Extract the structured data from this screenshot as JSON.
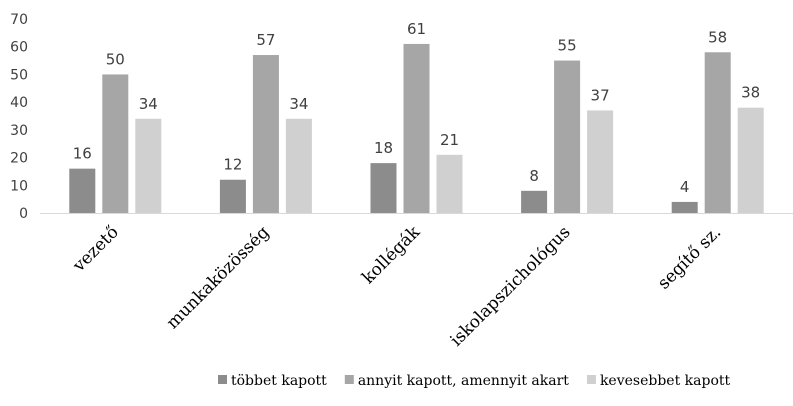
{
  "chart_data": {
    "type": "bar",
    "categories": [
      "vezető",
      "munkaközösség",
      "kollégák",
      "iskolapszichológus",
      "segítő sz."
    ],
    "series": [
      {
        "name": "többet kapott",
        "values": [
          16,
          12,
          18,
          8,
          4
        ],
        "color": "#8c8c8c"
      },
      {
        "name": "annyit kapott, amennyit akart",
        "values": [
          50,
          57,
          61,
          55,
          58
        ],
        "color": "#a6a6a6"
      },
      {
        "name": "kevesebbet kapott",
        "values": [
          34,
          34,
          21,
          37,
          38
        ],
        "color": "#d0d0d0"
      }
    ],
    "ylim": [
      0,
      70
    ],
    "yticks": [
      0,
      10,
      20,
      30,
      40,
      50,
      60,
      70
    ],
    "grid": false,
    "legend_position": "bottom",
    "data_labels": true,
    "axis_color": "#d9d9d9",
    "label_color": "#404040"
  }
}
